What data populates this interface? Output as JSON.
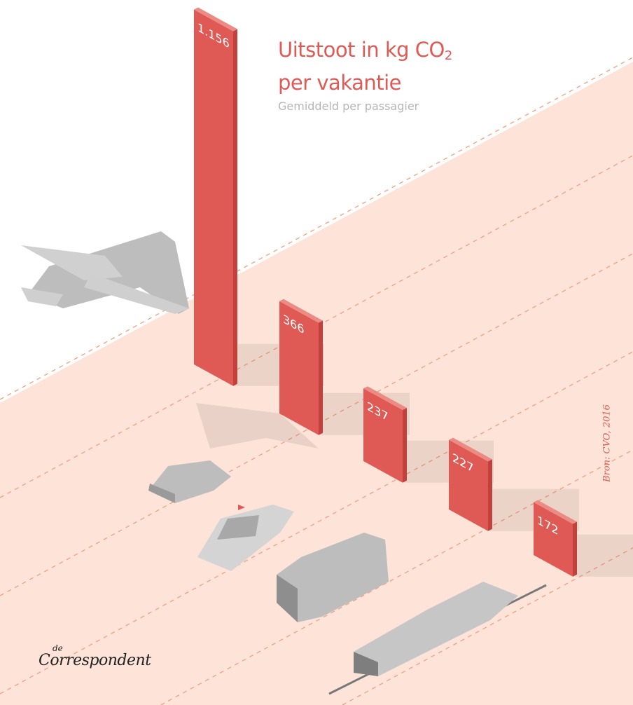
{
  "chart_data": {
    "type": "bar",
    "title": "Uitstoot in kg CO",
    "title_sub": "2",
    "title_line2": "per vakantie",
    "subtitle": "Gemiddeld per passagier",
    "categories": [
      "vliegtuig",
      "auto",
      "boot",
      "bus",
      "trein"
    ],
    "values": [
      1156,
      366,
      237,
      227,
      172
    ],
    "value_labels": [
      "1.156",
      "366",
      "237",
      "227",
      "172"
    ],
    "source": "Bron: CVO, 2016",
    "colors": {
      "bar": "#e05a55",
      "bar_side": "#c2413d",
      "bar_top": "#ec8a84",
      "ground": "#fde3d8",
      "dash": "#f0a07e",
      "vehicle": "#bdbdbd"
    }
  },
  "branding": {
    "logo_small": "de",
    "logo": "Correspondent"
  }
}
